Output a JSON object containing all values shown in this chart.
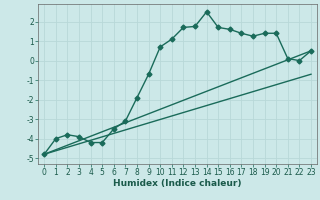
{
  "xlabel": "Humidex (Indice chaleur)",
  "ylabel": "",
  "bg_color": "#cce8e8",
  "grid_color": "#b8d8d8",
  "line_color": "#1a6b5a",
  "xlim": [
    -0.5,
    23.5
  ],
  "ylim": [
    -5.3,
    2.9
  ],
  "xticks": [
    0,
    1,
    2,
    3,
    4,
    5,
    6,
    7,
    8,
    9,
    10,
    11,
    12,
    13,
    14,
    15,
    16,
    17,
    18,
    19,
    20,
    21,
    22,
    23
  ],
  "yticks": [
    -5,
    -4,
    -3,
    -2,
    -1,
    0,
    1,
    2
  ],
  "curve_x": [
    0,
    1,
    2,
    3,
    4,
    5,
    6,
    7,
    8,
    9,
    10,
    11,
    12,
    13,
    14,
    15,
    16,
    17,
    18,
    19,
    20,
    21,
    22,
    23
  ],
  "curve_y": [
    -4.8,
    -4.0,
    -3.8,
    -3.9,
    -4.2,
    -4.2,
    -3.5,
    -3.1,
    -1.9,
    -0.7,
    0.7,
    1.1,
    1.7,
    1.75,
    2.5,
    1.7,
    1.6,
    1.4,
    1.25,
    1.4,
    1.4,
    0.1,
    0.0,
    0.5
  ],
  "line1_x": [
    0,
    23
  ],
  "line1_y": [
    -4.8,
    0.5
  ],
  "line2_x": [
    0,
    23
  ],
  "line2_y": [
    -4.8,
    -0.7
  ],
  "marker_style": "D",
  "marker_size": 2.5,
  "line_width": 1.0,
  "tick_fontsize": 5.5,
  "xlabel_fontsize": 6.5
}
